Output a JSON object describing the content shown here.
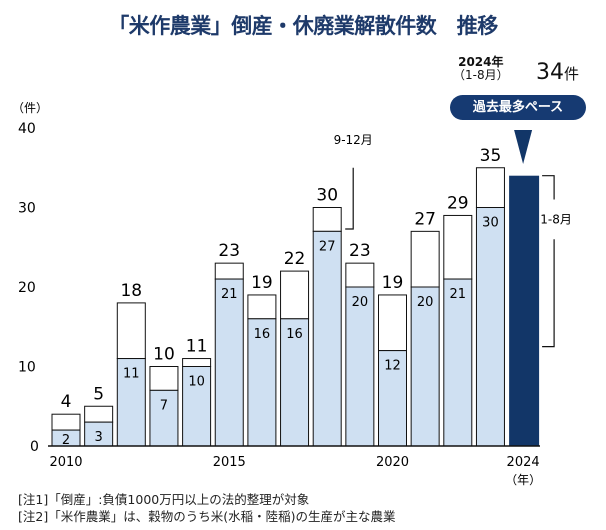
{
  "chart_data": {
    "type": "bar",
    "title": "「米作農業」倒産・休廃業解散件数　推移",
    "ylabel": "（件）",
    "xlabel": "（年）",
    "ylim": [
      0,
      40
    ],
    "yticks": [
      0,
      10,
      20,
      30,
      40
    ],
    "xtick_labels": [
      "2010",
      "2015",
      "2020",
      "2024"
    ],
    "categories": [
      2010,
      2011,
      2012,
      2013,
      2014,
      2015,
      2016,
      2017,
      2018,
      2019,
      2020,
      2021,
      2022,
      2023,
      2024
    ],
    "series": [
      {
        "name": "1-8月",
        "values": [
          2,
          3,
          11,
          7,
          10,
          21,
          16,
          16,
          27,
          20,
          12,
          20,
          21,
          30,
          34
        ]
      },
      {
        "name": "9-12月",
        "values": [
          2,
          2,
          7,
          3,
          1,
          2,
          3,
          6,
          3,
          3,
          7,
          7,
          8,
          5,
          null
        ]
      }
    ],
    "totals": [
      4,
      5,
      18,
      10,
      11,
      23,
      19,
      22,
      30,
      23,
      19,
      27,
      29,
      35,
      34
    ],
    "colors": {
      "jan_aug": "#cfe0f2",
      "sep_dec": "#ffffff",
      "y2024": "#123668",
      "title": "#1e3a6a"
    },
    "grid": false,
    "annotations": {
      "sep_dec_label": "9-12月",
      "jan_aug_label": "1-8月",
      "highlight_year": "2024年",
      "highlight_period": "（1-8月）",
      "highlight_value": "34",
      "highlight_unit": "件",
      "pill": "過去最多ペース"
    }
  },
  "notes": [
    "[注1]「倒産」:負債1000万円以上の法的整理が対象",
    "[注2]「米作農業」は、穀物のうち米(水稲・陸稲)の生産が主な農業"
  ]
}
